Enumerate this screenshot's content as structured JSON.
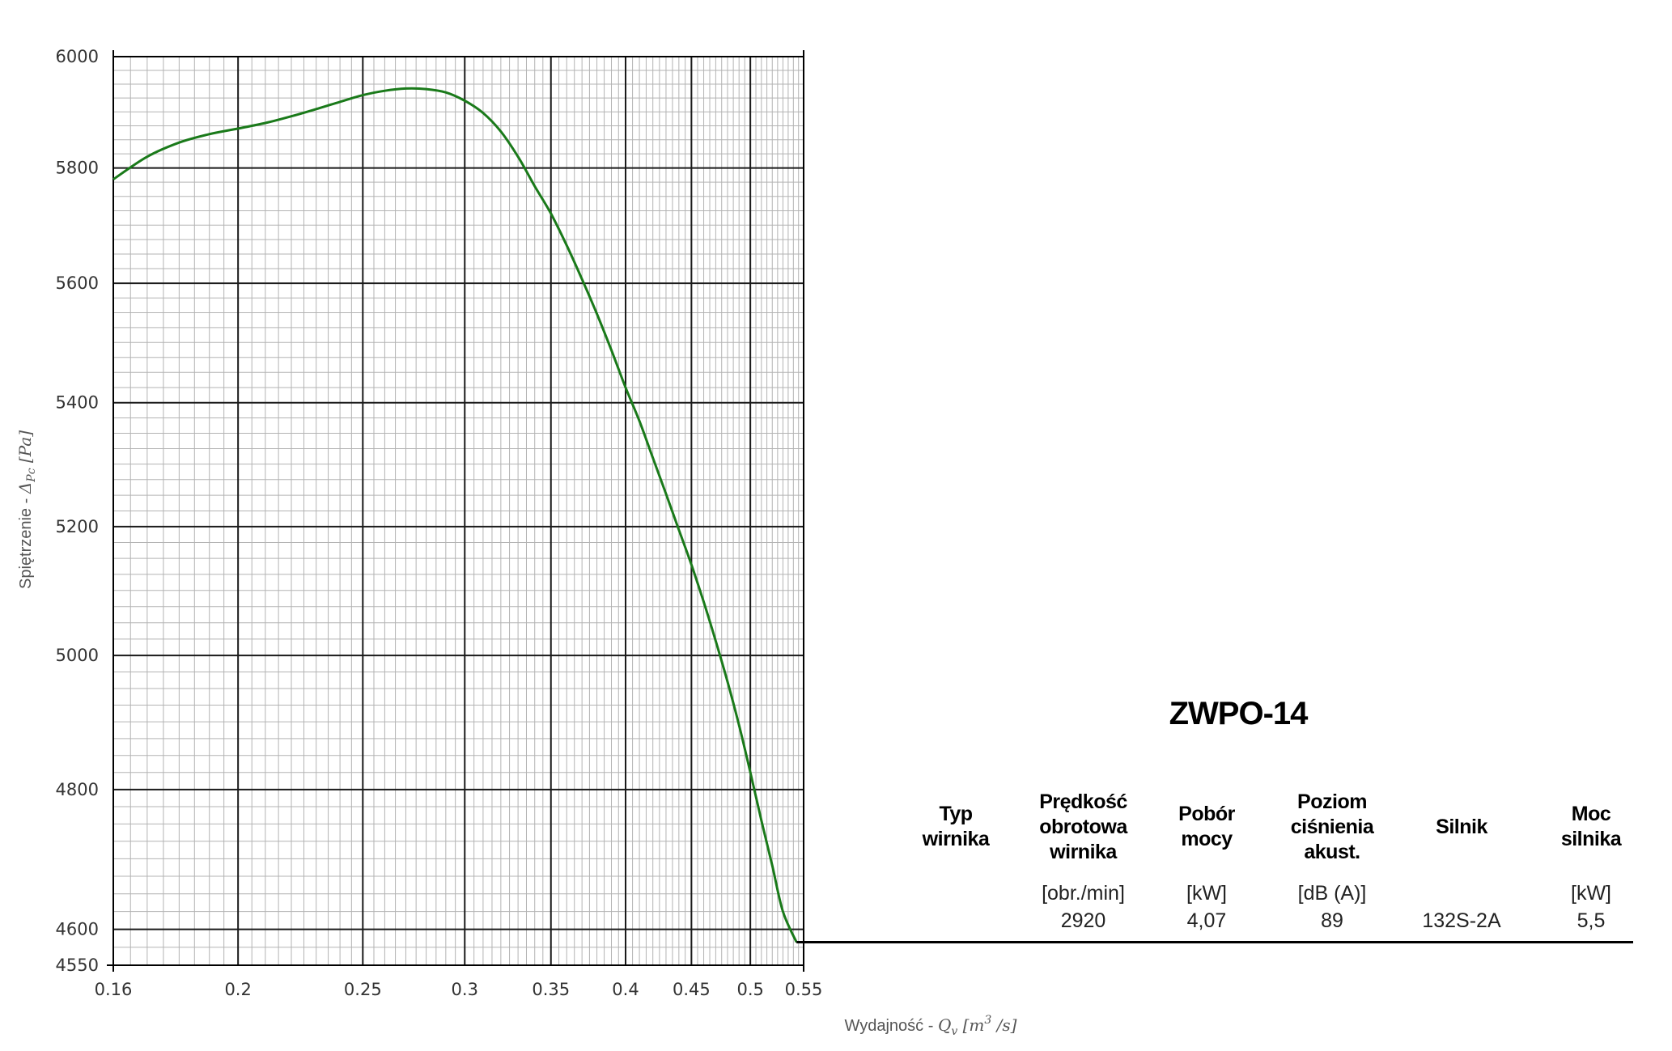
{
  "chart_data": {
    "type": "line",
    "title": "",
    "xlabel": "Wydajność - ",
    "xlabel_math": "Q",
    "xlabel_sub": "v",
    "xlabel_unit_open": " [m",
    "xlabel_unit_sup": "3",
    "xlabel_unit_close": " /s]",
    "ylabel": "Spiętrzenie - ",
    "ylabel_math": "Δ",
    "ylabel_sub": "Pc",
    "ylabel_unit": " [Pa]",
    "x_scale": "log",
    "y_scale": "log",
    "xlim": [
      0.16,
      0.55
    ],
    "ylim": [
      4550,
      6000
    ],
    "x_ticks": [
      0.16,
      0.2,
      0.25,
      0.3,
      0.35,
      0.4,
      0.45,
      0.5,
      0.55
    ],
    "x_tick_labels": [
      "0.16",
      "0.2",
      "0.25",
      "0.3",
      "0.35",
      "0.4",
      "0.45",
      "0.5",
      "0.55"
    ],
    "y_ticks": [
      4550,
      4600,
      4800,
      5000,
      5200,
      5400,
      5600,
      5800,
      6000
    ],
    "y_tick_labels": [
      "4550",
      "4600",
      "4800",
      "5000",
      "5200",
      "5400",
      "5600",
      "5800",
      "6000"
    ],
    "grid": true,
    "series": [
      {
        "color": "#1a7a1a",
        "x": [
          0.16,
          0.17,
          0.18,
          0.19,
          0.2,
          0.21,
          0.22,
          0.23,
          0.24,
          0.25,
          0.26,
          0.27,
          0.28,
          0.29,
          0.3,
          0.31,
          0.32,
          0.33,
          0.34,
          0.35,
          0.36,
          0.37,
          0.38,
          0.39,
          0.4,
          0.41,
          0.42,
          0.43,
          0.44,
          0.45,
          0.46,
          0.47,
          0.48,
          0.49,
          0.5,
          0.51,
          0.52,
          0.53,
          0.543
        ],
        "y": [
          5780,
          5820,
          5845,
          5860,
          5870,
          5880,
          5892,
          5905,
          5918,
          5930,
          5938,
          5942,
          5941,
          5935,
          5920,
          5898,
          5865,
          5820,
          5768,
          5720,
          5665,
          5607,
          5548,
          5487,
          5425,
          5370,
          5310,
          5252,
          5195,
          5140,
          5082,
          5022,
          4960,
          4895,
          4825,
          4755,
          4690,
          4625,
          4582
        ]
      }
    ]
  },
  "panel": {
    "title": "ZWPO-14",
    "columns": [
      {
        "header": [
          "Typ",
          "wirnika"
        ],
        "unit": "",
        "value": ""
      },
      {
        "header": [
          "Prędkość",
          "obrotowa",
          "wirnika"
        ],
        "unit": "[obr./min]",
        "value": "2920"
      },
      {
        "header": [
          "Pobór",
          "mocy"
        ],
        "unit": "[kW]",
        "value": "4,07"
      },
      {
        "header": [
          "Poziom",
          "ciśnienia",
          "akust."
        ],
        "unit": "[dB (A)]",
        "value": "89"
      },
      {
        "header": [
          "Silnik"
        ],
        "unit": "",
        "value": "132S-2A"
      },
      {
        "header": [
          "Moc",
          "silnika"
        ],
        "unit": "[kW]",
        "value": "5,5"
      }
    ]
  }
}
